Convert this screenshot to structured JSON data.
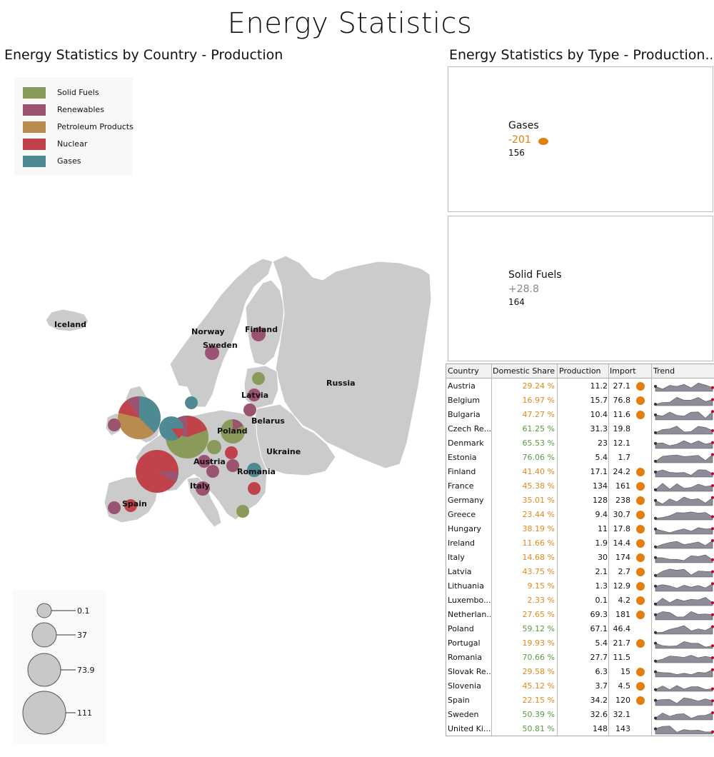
{
  "title": "Energy Statistics",
  "left_panel": {
    "title": "Energy Statistics by Country - Production",
    "legend": [
      {
        "label": "Solid Fuels",
        "color": "#8a9a5b"
      },
      {
        "label": "Renewables",
        "color": "#9a5370"
      },
      {
        "label": "Petroleum Products",
        "color": "#b98b4e"
      },
      {
        "label": "Nuclear",
        "color": "#c0434b"
      },
      {
        "label": "Gases",
        "color": "#4f8a92"
      }
    ],
    "map_labels": [
      "Iceland",
      "Norway",
      "Sweden",
      "Finland",
      "Russia",
      "Latvia",
      "Belarus",
      "Poland",
      "Ukraine",
      "Austria",
      "Romania",
      "Italy",
      "Spain"
    ],
    "size_legend": [
      "0.1",
      "37",
      "73.9",
      "111"
    ]
  },
  "right_panel": {
    "title": "Energy Statistics by Type - Production...",
    "kpis": [
      {
        "name": "Gases",
        "delta": "-201",
        "value": "156",
        "delta_color": "#e57d0b"
      },
      {
        "name": "Solid Fuels",
        "delta": "+28.8",
        "value": "164",
        "delta_color": "#888888"
      }
    ],
    "grid": {
      "headers": [
        "Country",
        "Domestic Share",
        "Production",
        "Import",
        "Trend"
      ],
      "rows": [
        {
          "country": "Austria",
          "share": "29.24 %",
          "prod": "11.2",
          "imp": "27.1",
          "dot": true
        },
        {
          "country": "Belgium",
          "share": "16.97 %",
          "prod": "15.7",
          "imp": "76.8",
          "dot": true
        },
        {
          "country": "Bulgaria",
          "share": "47.27 %",
          "prod": "10.4",
          "imp": "11.6",
          "dot": true
        },
        {
          "country": "Czech Re...",
          "share": "61.25 %",
          "prod": "31.3",
          "imp": "19.8",
          "dot": false
        },
        {
          "country": "Denmark",
          "share": "65.53 %",
          "prod": "23",
          "imp": "12.1",
          "dot": false
        },
        {
          "country": "Estonia",
          "share": "76.06 %",
          "prod": "5.4",
          "imp": "1.7",
          "dot": false
        },
        {
          "country": "Finland",
          "share": "41.40 %",
          "prod": "17.1",
          "imp": "24.2",
          "dot": true
        },
        {
          "country": "France",
          "share": "45.38 %",
          "prod": "134",
          "imp": "161",
          "dot": true
        },
        {
          "country": "Germany",
          "share": "35.01 %",
          "prod": "128",
          "imp": "238",
          "dot": true
        },
        {
          "country": "Greece",
          "share": "23.44 %",
          "prod": "9.4",
          "imp": "30.7",
          "dot": true
        },
        {
          "country": "Hungary",
          "share": "38.19 %",
          "prod": "11",
          "imp": "17.8",
          "dot": true
        },
        {
          "country": "Ireland",
          "share": "11.66 %",
          "prod": "1.9",
          "imp": "14.4",
          "dot": true
        },
        {
          "country": "Italy",
          "share": "14.68 %",
          "prod": "30",
          "imp": "174",
          "dot": true
        },
        {
          "country": "Latvia",
          "share": "43.75 %",
          "prod": "2.1",
          "imp": "2.7",
          "dot": true
        },
        {
          "country": "Lithuania",
          "share": "9.15 %",
          "prod": "1.3",
          "imp": "12.9",
          "dot": true
        },
        {
          "country": "Luxembo...",
          "share": "2.33 %",
          "prod": "0.1",
          "imp": "4.2",
          "dot": true
        },
        {
          "country": "Netherlan...",
          "share": "27.65 %",
          "prod": "69.3",
          "imp": "181",
          "dot": true
        },
        {
          "country": "Poland",
          "share": "59.12 %",
          "prod": "67.1",
          "imp": "46.4",
          "dot": false
        },
        {
          "country": "Portugal",
          "share": "19.93 %",
          "prod": "5.4",
          "imp": "21.7",
          "dot": true
        },
        {
          "country": "Romania",
          "share": "70.66 %",
          "prod": "27.7",
          "imp": "11.5",
          "dot": false
        },
        {
          "country": "Slovak Re...",
          "share": "29.58 %",
          "prod": "6.3",
          "imp": "15",
          "dot": true
        },
        {
          "country": "Slovenia",
          "share": "45.12 %",
          "prod": "3.7",
          "imp": "4.5",
          "dot": true
        },
        {
          "country": "Spain",
          "share": "22.15 %",
          "prod": "34.2",
          "imp": "120",
          "dot": true
        },
        {
          "country": "Sweden",
          "share": "50.39 %",
          "prod": "32.6",
          "imp": "32.1",
          "dot": false
        },
        {
          "country": "United Ki...",
          "share": "50.81 %",
          "prod": "148",
          "imp": "143",
          "dot": false
        }
      ],
      "share_colors": {
        "high": "#5b9a45",
        "low": "#e08a1e"
      },
      "import_dot_color": "#e57d0b"
    }
  }
}
